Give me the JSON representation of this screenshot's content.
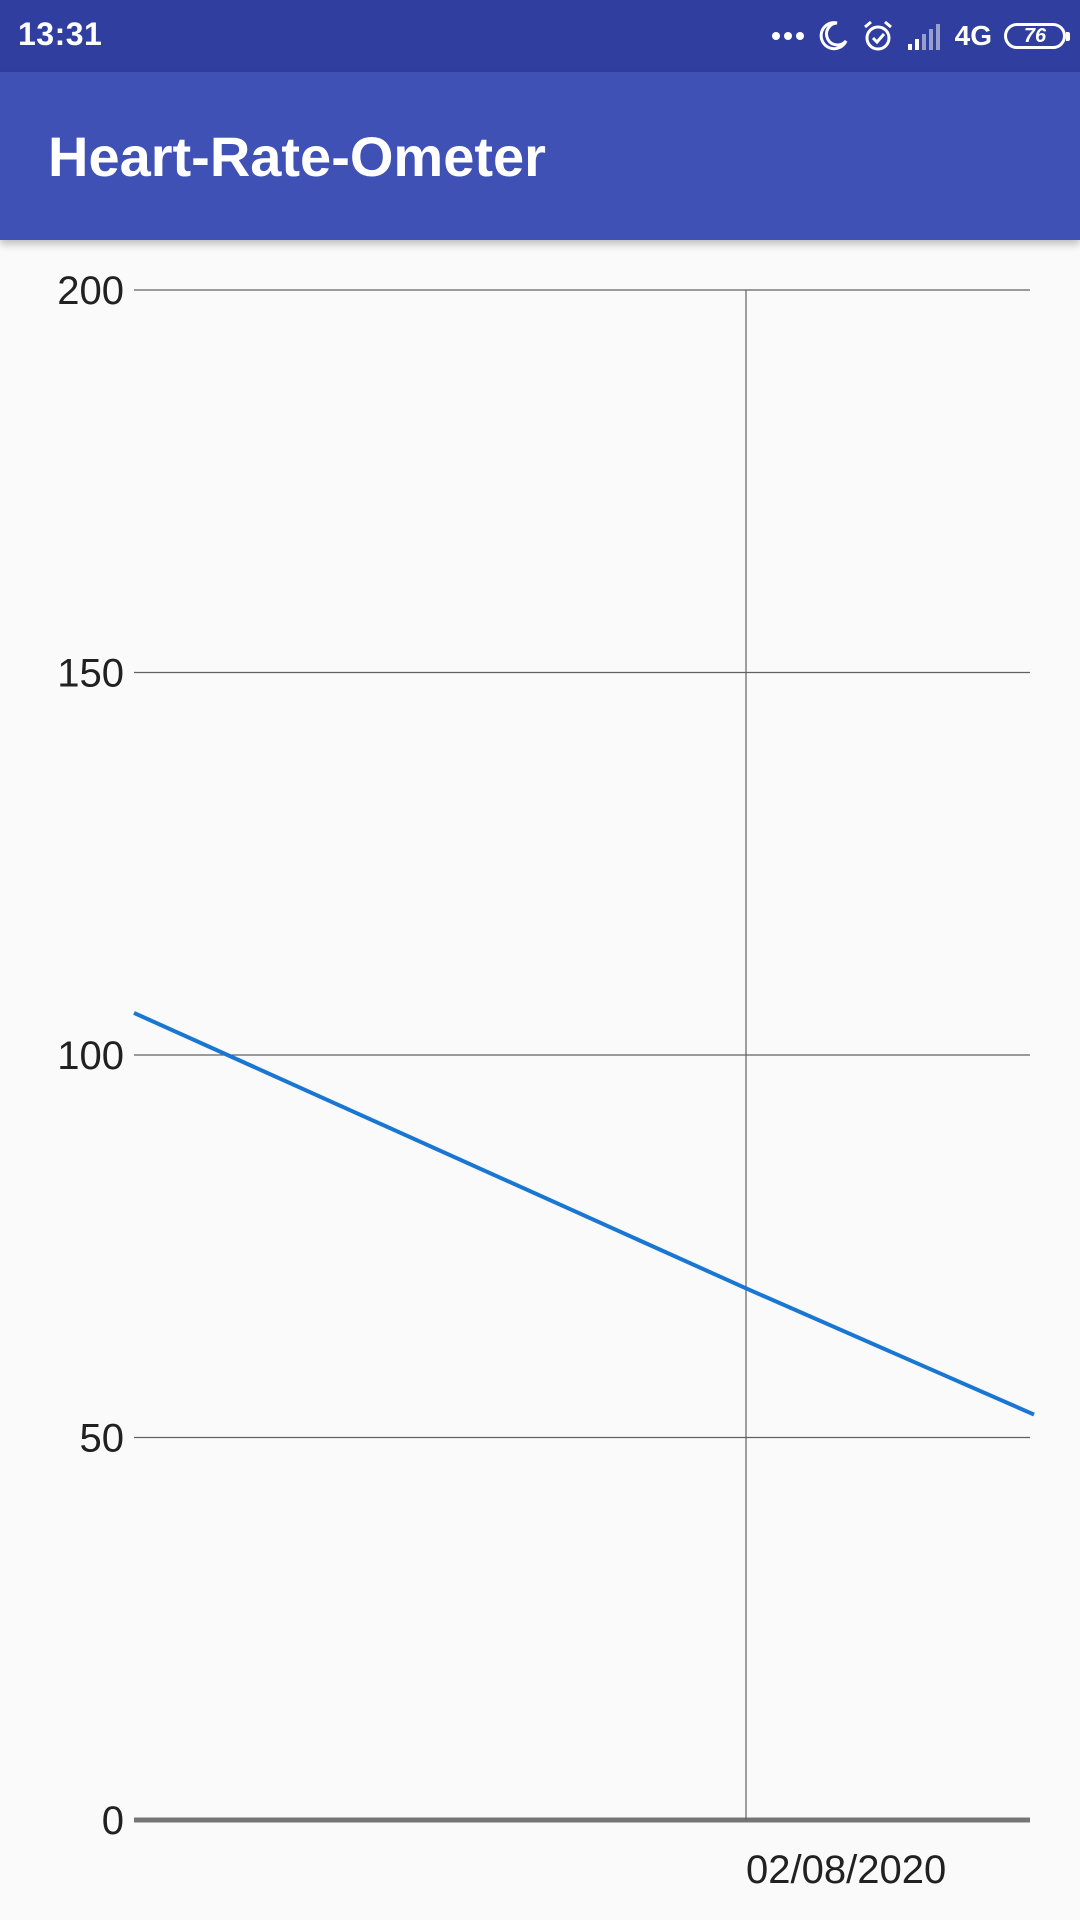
{
  "status_bar": {
    "time": "13:31",
    "network": "4G",
    "battery_level": "76",
    "icons": [
      "more-dots-icon",
      "moon-icon",
      "alarm-icon",
      "signal-icon",
      "network-4g-icon",
      "battery-icon"
    ]
  },
  "app_bar": {
    "title": "Heart-Rate-Ometer",
    "background_color": "#3f51b5",
    "status_color": "#303f9f"
  },
  "chart_data": {
    "type": "line",
    "xlabel": "",
    "ylabel": "",
    "ylim": [
      0,
      200
    ],
    "y_ticks": [
      "0",
      "50",
      "100",
      "150",
      "200"
    ],
    "x_tick_labels": [
      "02/08/2020"
    ],
    "series": [
      {
        "color": "#1976d2",
        "points": [
          {
            "x": "start",
            "y": 105.5
          },
          {
            "x": "02/08/2020",
            "y": 69.5
          },
          {
            "x": "end",
            "y": 53
          }
        ]
      }
    ],
    "grid": true,
    "legend": "none"
  }
}
